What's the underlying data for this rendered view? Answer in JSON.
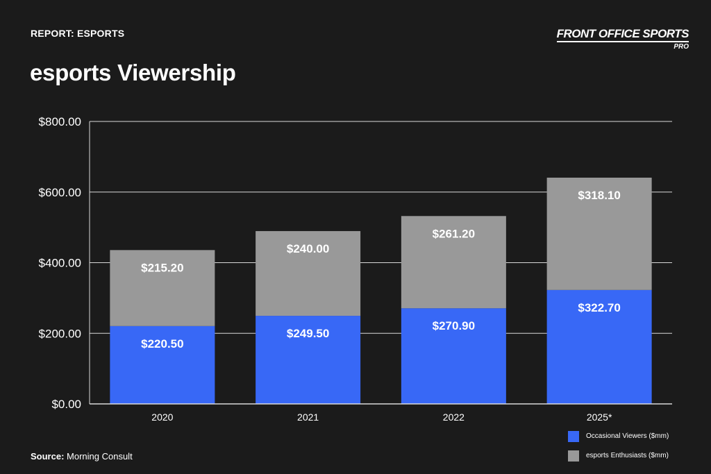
{
  "header": {
    "kicker": "REPORT: ESPORTS",
    "title": "esports Viewership",
    "brand_name": "FRONT OFFICE SPORTS",
    "brand_sub": "PRO"
  },
  "footer": {
    "source_label": "Source:",
    "source_value": " Morning Consult"
  },
  "colors": {
    "background": "#1b1b1b",
    "occasional": "#3868f6",
    "enthusiasts": "#999999",
    "gridline": "#d9d9d9"
  },
  "chart_data": {
    "type": "bar",
    "stacked": true,
    "title": "esports Viewership",
    "categories": [
      "2020",
      "2021",
      "2022",
      "2025*"
    ],
    "ylim": [
      0,
      800
    ],
    "yticks": [
      0,
      200,
      400,
      600,
      800
    ],
    "ytick_labels": [
      "$0.00",
      "$200.00",
      "$400.00",
      "$600.00",
      "$800.00"
    ],
    "grid": true,
    "legend_position": "bottom-right",
    "series": [
      {
        "name": "Occasional Viewers ($mm)",
        "color": "#3868f6",
        "values": [
          220.5,
          249.5,
          270.9,
          322.7
        ],
        "labels": [
          "$220.50",
          "$249.50",
          "$270.90",
          "$322.70"
        ]
      },
      {
        "name": "esports Enthusiasts ($mm)",
        "color": "#999999",
        "values": [
          215.2,
          240.0,
          261.2,
          318.1
        ],
        "labels": [
          "$215.20",
          "$240.00",
          "$261.20",
          "$318.10"
        ]
      }
    ]
  }
}
